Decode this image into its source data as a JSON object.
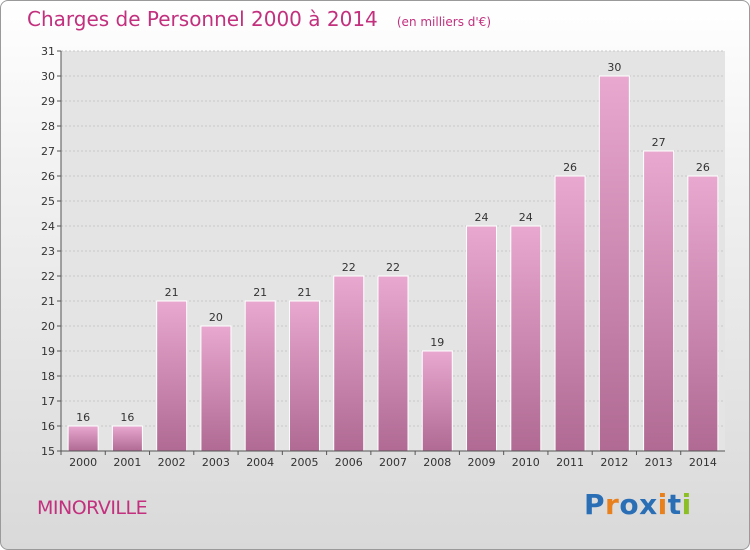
{
  "header": {
    "title": "Charges de Personnel 2000 à 2014",
    "subtitle": "(en milliers d'€)"
  },
  "footer": {
    "city": "MINORVILLE",
    "logo_text": "Proxiti"
  },
  "colors": {
    "accent": "#c2307e",
    "bar_top": "#e8a8cf",
    "bar_bottom": "#b06a93",
    "logo_letters": [
      "#2a6fb6",
      "#e8801e",
      "#2a6fb6",
      "#2a6fb6",
      "#e8801e",
      "#2a6fb6",
      "#8cbf26"
    ]
  },
  "chart_data": {
    "type": "bar",
    "categories": [
      "2000",
      "2001",
      "2002",
      "2003",
      "2004",
      "2005",
      "2006",
      "2007",
      "2008",
      "2009",
      "2010",
      "2011",
      "2012",
      "2013",
      "2014"
    ],
    "values": [
      16,
      16,
      21,
      20,
      21,
      21,
      22,
      22,
      19,
      24,
      24,
      26,
      30,
      27,
      26
    ],
    "ylim": [
      15,
      31
    ],
    "yticks": [
      15,
      16,
      17,
      18,
      19,
      20,
      21,
      22,
      23,
      24,
      25,
      26,
      27,
      28,
      29,
      30,
      31
    ],
    "grid": true,
    "data_labels": true
  }
}
